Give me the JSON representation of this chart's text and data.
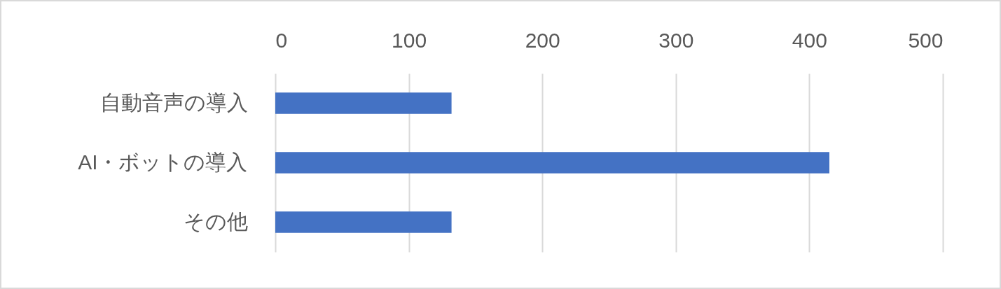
{
  "chart_data": {
    "type": "bar",
    "orientation": "horizontal",
    "categories": [
      "自動音声の導入",
      "AI・ボットの導入",
      "その他"
    ],
    "values": [
      132,
      415,
      132
    ],
    "color": "#4472c4",
    "xlim": [
      0,
      500
    ],
    "xticks": [
      0,
      100,
      200,
      300,
      400,
      500
    ],
    "grid": "x"
  }
}
